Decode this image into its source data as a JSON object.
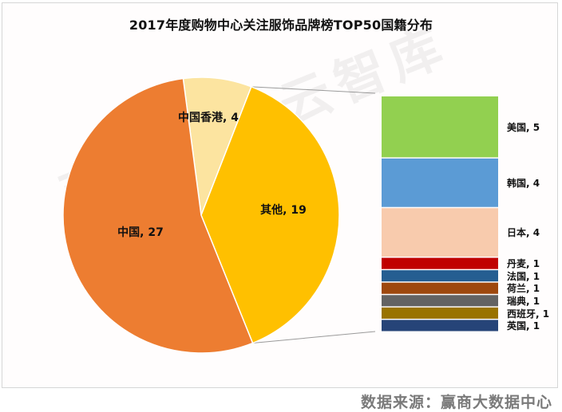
{
  "title": "2017年度购物中心关注服饰品牌榜TOP50国籍分布",
  "source_text": "数据来源：赢商大数据中心",
  "watermark": "商业地产云智库",
  "chart_data": {
    "type": "bar-of-pie",
    "title": "2017年度购物中心关注服饰品牌榜TOP50国籍分布",
    "total": 50,
    "pie": {
      "slices": [
        {
          "label": "中国",
          "value": 27,
          "display": "中国, 27",
          "color": "#ED7D31"
        },
        {
          "label": "中国香港",
          "value": 4,
          "display": "中国香港, 4",
          "color": "#FCE4A0"
        },
        {
          "label": "其他",
          "value": 19,
          "display": "其他, 19",
          "color": "#FFC000"
        }
      ]
    },
    "bar": {
      "expands": "其他",
      "segments": [
        {
          "label": "美国",
          "value": 5,
          "display": "美国, 5",
          "color": "#92D050"
        },
        {
          "label": "韩国",
          "value": 4,
          "display": "韩国, 4",
          "color": "#5B9BD5"
        },
        {
          "label": "日本",
          "value": 4,
          "display": "日本, 4",
          "color": "#F8CBAD"
        },
        {
          "label": "丹麦",
          "value": 1,
          "display": "丹麦, 1",
          "color": "#C00000"
        },
        {
          "label": "法国",
          "value": 1,
          "display": "法国, 1",
          "color": "#255E91"
        },
        {
          "label": "荷兰",
          "value": 1,
          "display": "荷兰, 1",
          "color": "#9E480E"
        },
        {
          "label": "瑞典",
          "value": 1,
          "display": "瑞典, 1",
          "color": "#636363"
        },
        {
          "label": "西班牙",
          "value": 1,
          "display": "西班牙, 1",
          "color": "#997300"
        },
        {
          "label": "英国",
          "value": 1,
          "display": "英国, 1",
          "color": "#264478"
        }
      ]
    },
    "legend": "none (data labels on slices)"
  }
}
